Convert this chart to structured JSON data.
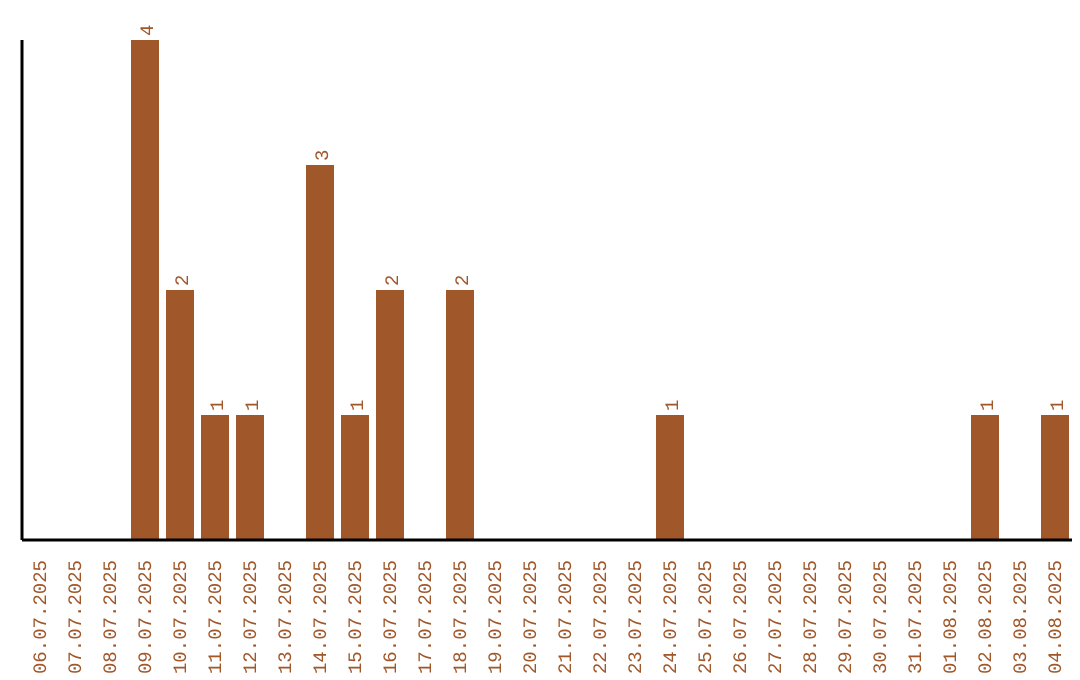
{
  "chart_data": {
    "type": "bar",
    "categories": [
      "06.07.2025",
      "07.07.2025",
      "08.07.2025",
      "09.07.2025",
      "10.07.2025",
      "11.07.2025",
      "12.07.2025",
      "13.07.2025",
      "14.07.2025",
      "15.07.2025",
      "16.07.2025",
      "17.07.2025",
      "18.07.2025",
      "19.07.2025",
      "20.07.2025",
      "21.07.2025",
      "22.07.2025",
      "23.07.2025",
      "24.07.2025",
      "25.07.2025",
      "26.07.2025",
      "27.07.2025",
      "28.07.2025",
      "29.07.2025",
      "30.07.2025",
      "31.07.2025",
      "01.08.2025",
      "02.08.2025",
      "03.08.2025",
      "04.08.2025"
    ],
    "values": [
      0,
      0,
      0,
      4,
      2,
      1,
      1,
      0,
      3,
      1,
      2,
      0,
      2,
      0,
      0,
      0,
      0,
      0,
      1,
      0,
      0,
      0,
      0,
      0,
      0,
      0,
      0,
      1,
      0,
      1
    ],
    "value_labels": [
      null,
      null,
      null,
      "4",
      "2",
      "1",
      "1",
      null,
      "3",
      "1",
      "2",
      null,
      "2",
      null,
      null,
      null,
      null,
      null,
      "1",
      null,
      null,
      null,
      null,
      null,
      null,
      null,
      null,
      "1",
      null,
      "1"
    ],
    "color": "#a0572a",
    "grid": false,
    "legend": false
  }
}
